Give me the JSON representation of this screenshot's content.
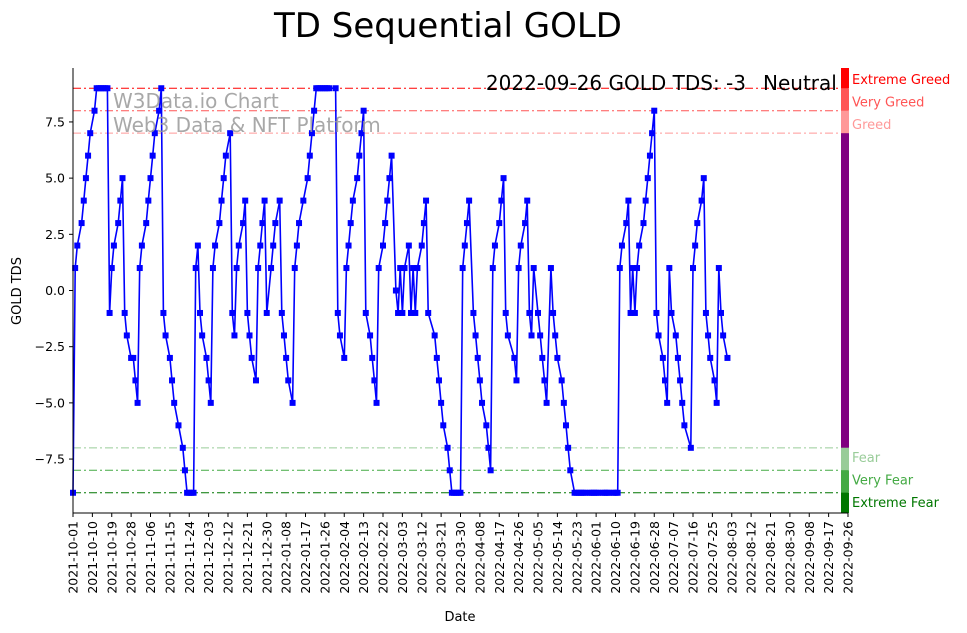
{
  "chart_data": {
    "type": "line",
    "title": "TD Sequential GOLD",
    "xlabel": "Date",
    "ylabel": "GOLD TDS",
    "ylim": [
      -9.9,
      9.9
    ],
    "yticks": [
      -7.5,
      -5.0,
      -2.5,
      0.0,
      2.5,
      5.0,
      7.5
    ],
    "ytick_labels": [
      "−7.5",
      "−5.0",
      "−2.5",
      "0.0",
      "2.5",
      "5.0",
      "7.5"
    ],
    "x_start": "2021-10-01",
    "x_end": "2022-09-26",
    "xtick_labels": [
      "2021-10-01",
      "2021-10-10",
      "2021-10-19",
      "2021-10-28",
      "2021-11-06",
      "2021-11-15",
      "2021-11-24",
      "2021-12-03",
      "2021-12-12",
      "2021-12-21",
      "2021-12-30",
      "2022-01-08",
      "2022-01-17",
      "2022-01-26",
      "2022-02-04",
      "2022-02-13",
      "2022-02-22",
      "2022-03-03",
      "2022-03-12",
      "2022-03-21",
      "2022-03-30",
      "2022-04-08",
      "2022-04-17",
      "2022-04-26",
      "2022-05-05",
      "2022-05-14",
      "2022-05-23",
      "2022-06-01",
      "2022-06-10",
      "2022-06-19",
      "2022-06-28",
      "2022-07-07",
      "2022-07-16",
      "2022-07-25",
      "2022-08-03",
      "2022-08-12",
      "2022-08-21",
      "2022-08-30",
      "2022-09-08",
      "2022-09-17",
      "2022-09-26"
    ],
    "series": [
      {
        "name": "GOLD TDS",
        "color": "#0000ff",
        "points": [
          [
            0,
            -9
          ],
          [
            1,
            1
          ],
          [
            2,
            2
          ],
          [
            4,
            3
          ],
          [
            5,
            4
          ],
          [
            6,
            5
          ],
          [
            7,
            6
          ],
          [
            8,
            7
          ],
          [
            10,
            8
          ],
          [
            11,
            9
          ],
          [
            12,
            9
          ],
          [
            13,
            9
          ],
          [
            14,
            9
          ],
          [
            15,
            9
          ],
          [
            16,
            9
          ],
          [
            17,
            -1
          ],
          [
            18,
            1
          ],
          [
            19,
            2
          ],
          [
            21,
            3
          ],
          [
            22,
            4
          ],
          [
            23,
            5
          ],
          [
            24,
            -1
          ],
          [
            25,
            -2
          ],
          [
            27,
            -3
          ],
          [
            28,
            -3
          ],
          [
            29,
            -4
          ],
          [
            30,
            -5
          ],
          [
            31,
            1
          ],
          [
            32,
            2
          ],
          [
            34,
            3
          ],
          [
            35,
            4
          ],
          [
            36,
            5
          ],
          [
            37,
            6
          ],
          [
            38,
            7
          ],
          [
            40,
            8
          ],
          [
            41,
            9
          ],
          [
            42,
            -1
          ],
          [
            43,
            -2
          ],
          [
            45,
            -3
          ],
          [
            46,
            -4
          ],
          [
            47,
            -5
          ],
          [
            49,
            -6
          ],
          [
            51,
            -7
          ],
          [
            52,
            -8
          ],
          [
            53,
            -9
          ],
          [
            54,
            -9
          ],
          [
            55,
            -9
          ],
          [
            56,
            -9
          ],
          [
            57,
            1
          ],
          [
            58,
            2
          ],
          [
            59,
            -1
          ],
          [
            60,
            -2
          ],
          [
            62,
            -3
          ],
          [
            63,
            -4
          ],
          [
            64,
            -5
          ],
          [
            65,
            1
          ],
          [
            66,
            2
          ],
          [
            68,
            3
          ],
          [
            69,
            4
          ],
          [
            70,
            5
          ],
          [
            71,
            6
          ],
          [
            73,
            7
          ],
          [
            74,
            -1
          ],
          [
            75,
            -2
          ],
          [
            76,
            1
          ],
          [
            77,
            2
          ],
          [
            79,
            3
          ],
          [
            80,
            4
          ],
          [
            81,
            -1
          ],
          [
            82,
            -2
          ],
          [
            83,
            -3
          ],
          [
            85,
            -4
          ],
          [
            86,
            1
          ],
          [
            87,
            2
          ],
          [
            88,
            3
          ],
          [
            89,
            4
          ],
          [
            90,
            -1
          ],
          [
            92,
            1
          ],
          [
            93,
            2
          ],
          [
            94,
            3
          ],
          [
            96,
            4
          ],
          [
            97,
            -1
          ],
          [
            98,
            -2
          ],
          [
            99,
            -3
          ],
          [
            100,
            -4
          ],
          [
            102,
            -5
          ],
          [
            103,
            1
          ],
          [
            104,
            2
          ],
          [
            105,
            3
          ],
          [
            107,
            4
          ],
          [
            109,
            5
          ],
          [
            110,
            6
          ],
          [
            111,
            7
          ],
          [
            112,
            8
          ],
          [
            113,
            9
          ],
          [
            114,
            9
          ],
          [
            115,
            9
          ],
          [
            116,
            9
          ],
          [
            117,
            9
          ],
          [
            118,
            9
          ],
          [
            119,
            9
          ],
          [
            122,
            9
          ],
          [
            123,
            -1
          ],
          [
            124,
            -2
          ],
          [
            126,
            -3
          ],
          [
            127,
            1
          ],
          [
            128,
            2
          ],
          [
            129,
            3
          ],
          [
            130,
            4
          ],
          [
            132,
            5
          ],
          [
            133,
            6
          ],
          [
            134,
            7
          ],
          [
            135,
            8
          ],
          [
            136,
            -1
          ],
          [
            138,
            -2
          ],
          [
            139,
            -3
          ],
          [
            140,
            -4
          ],
          [
            141,
            -5
          ],
          [
            142,
            1
          ],
          [
            144,
            2
          ],
          [
            145,
            3
          ],
          [
            146,
            4
          ],
          [
            147,
            5
          ],
          [
            148,
            6
          ],
          [
            150,
            0
          ],
          [
            151,
            -1
          ],
          [
            152,
            1
          ],
          [
            153,
            -1
          ],
          [
            154,
            1
          ],
          [
            156,
            2
          ],
          [
            157,
            -1
          ],
          [
            158,
            1
          ],
          [
            159,
            -1
          ],
          [
            160,
            1
          ],
          [
            162,
            2
          ],
          [
            163,
            3
          ],
          [
            164,
            4
          ],
          [
            165,
            -1
          ],
          [
            168,
            -2
          ],
          [
            169,
            -3
          ],
          [
            170,
            -4
          ],
          [
            171,
            -5
          ],
          [
            172,
            -6
          ],
          [
            174,
            -7
          ],
          [
            175,
            -8
          ],
          [
            176,
            -9
          ],
          [
            177,
            -9
          ],
          [
            178,
            -9
          ],
          [
            179,
            -9
          ],
          [
            180,
            -9
          ],
          [
            181,
            1
          ],
          [
            182,
            2
          ],
          [
            183,
            3
          ],
          [
            184,
            4
          ],
          [
            186,
            -1
          ],
          [
            187,
            -2
          ],
          [
            188,
            -3
          ],
          [
            189,
            -4
          ],
          [
            190,
            -5
          ],
          [
            192,
            -6
          ],
          [
            193,
            -7
          ],
          [
            194,
            -8
          ],
          [
            195,
            1
          ],
          [
            196,
            2
          ],
          [
            198,
            3
          ],
          [
            199,
            4
          ],
          [
            200,
            5
          ],
          [
            201,
            -1
          ],
          [
            202,
            -2
          ],
          [
            205,
            -3
          ],
          [
            206,
            -4
          ],
          [
            207,
            1
          ],
          [
            208,
            2
          ],
          [
            210,
            3
          ],
          [
            211,
            4
          ],
          [
            212,
            -1
          ],
          [
            213,
            -2
          ],
          [
            214,
            1
          ],
          [
            216,
            -1
          ],
          [
            217,
            -2
          ],
          [
            218,
            -3
          ],
          [
            219,
            -4
          ],
          [
            220,
            -5
          ],
          [
            222,
            1
          ],
          [
            223,
            -1
          ],
          [
            224,
            -2
          ],
          [
            225,
            -3
          ],
          [
            227,
            -4
          ],
          [
            228,
            -5
          ],
          [
            229,
            -6
          ],
          [
            230,
            -7
          ],
          [
            231,
            -8
          ],
          [
            233,
            -9
          ],
          [
            234,
            -9
          ],
          [
            235,
            -9
          ],
          [
            236,
            -9
          ],
          [
            237,
            -9
          ],
          [
            238,
            -9
          ],
          [
            240,
            -9
          ],
          [
            241,
            -9
          ],
          [
            242,
            -9
          ],
          [
            243,
            -9
          ],
          [
            244,
            -9
          ],
          [
            246,
            -9
          ],
          [
            247,
            -9
          ],
          [
            248,
            -9
          ],
          [
            249,
            -9
          ],
          [
            251,
            -9
          ],
          [
            252,
            -9
          ],
          [
            253,
            -9
          ],
          [
            254,
            1
          ],
          [
            255,
            2
          ],
          [
            257,
            3
          ],
          [
            258,
            4
          ],
          [
            259,
            -1
          ],
          [
            260,
            1
          ],
          [
            261,
            -1
          ],
          [
            262,
            1
          ],
          [
            263,
            2
          ],
          [
            265,
            3
          ],
          [
            266,
            4
          ],
          [
            267,
            5
          ],
          [
            268,
            6
          ],
          [
            269,
            7
          ],
          [
            270,
            8
          ],
          [
            271,
            -1
          ],
          [
            272,
            -2
          ],
          [
            274,
            -3
          ],
          [
            275,
            -4
          ],
          [
            276,
            -5
          ],
          [
            277,
            1
          ],
          [
            278,
            -1
          ],
          [
            280,
            -2
          ],
          [
            281,
            -3
          ],
          [
            282,
            -4
          ],
          [
            283,
            -5
          ],
          [
            284,
            -6
          ],
          [
            287,
            -7
          ],
          [
            288,
            1
          ],
          [
            289,
            2
          ],
          [
            290,
            3
          ],
          [
            292,
            4
          ],
          [
            293,
            5
          ],
          [
            294,
            -1
          ],
          [
            295,
            -2
          ],
          [
            296,
            -3
          ],
          [
            298,
            -4
          ],
          [
            299,
            -5
          ],
          [
            300,
            1
          ],
          [
            301,
            -1
          ],
          [
            302,
            -2
          ],
          [
            304,
            -3
          ]
        ]
      }
    ],
    "zones": [
      {
        "name": "Extreme Greed",
        "value": 9,
        "color": "#ff0000",
        "label_y": 9.4
      },
      {
        "name": "Very Greed",
        "value": 8,
        "color": "#ff5555",
        "label_y": 8.4
      },
      {
        "name": "Greed",
        "value": 7,
        "color": "#ff9999",
        "label_y": 7.4
      },
      {
        "name": "Fear",
        "value": -7,
        "color": "#99cc99",
        "label_y": -7.4
      },
      {
        "name": "Very Fear",
        "value": -8,
        "color": "#44aa44",
        "label_y": -8.4
      },
      {
        "name": "Extreme Fear",
        "value": -9,
        "color": "#007700",
        "label_y": -9.4
      }
    ],
    "side_bar": [
      {
        "from": 9,
        "to": 9.9,
        "color": "#ff0000"
      },
      {
        "from": 8,
        "to": 9,
        "color": "#ff5555"
      },
      {
        "from": 7,
        "to": 8,
        "color": "#ff9999"
      },
      {
        "from": -7,
        "to": 7,
        "color": "#800080"
      },
      {
        "from": -8,
        "to": -7,
        "color": "#99cc99"
      },
      {
        "from": -9,
        "to": -8,
        "color": "#44aa44"
      },
      {
        "from": -9.9,
        "to": -9,
        "color": "#007700"
      }
    ],
    "status_text": "2022-09-26 GOLD TDS: -3",
    "status_label": "Neutral",
    "status_color": "#800080",
    "watermark": [
      "W3Data.io Chart",
      "Web3 Data & NFT Platform"
    ]
  }
}
